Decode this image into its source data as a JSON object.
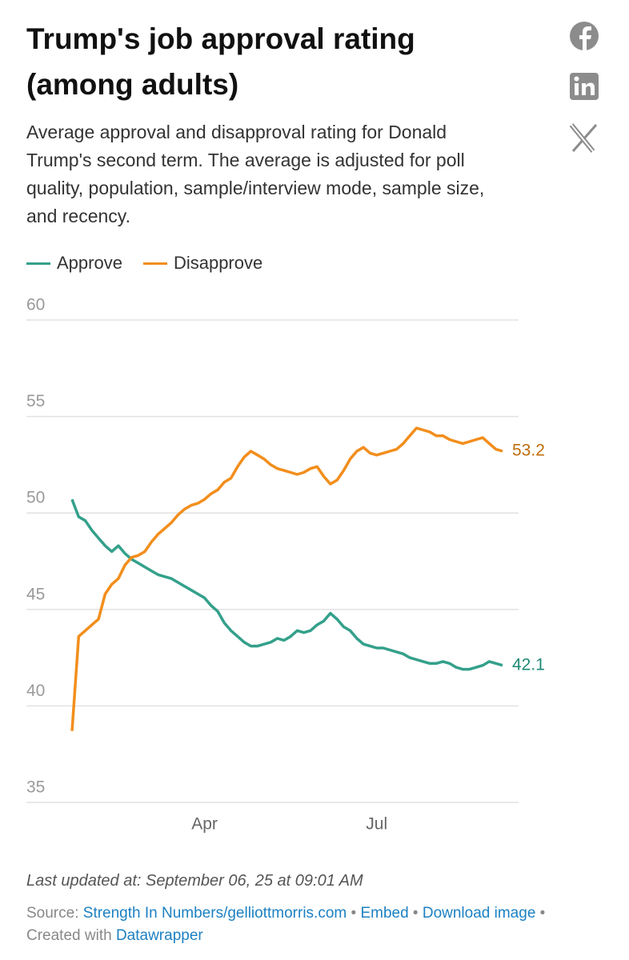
{
  "chart_data": {
    "type": "line",
    "title": "Trump's job approval rating (among adults)",
    "subtitle": "Average approval and disapproval rating for Donald Trump's second term. The average is adjusted for poll quality, population, sample/interview mode, sample size, and recency.",
    "categories": [
      null,
      null,
      null,
      null,
      null,
      null,
      null,
      null,
      null,
      null,
      null,
      null,
      null,
      null,
      null,
      null,
      null,
      null,
      null,
      null,
      "Apr",
      null,
      null,
      null,
      null,
      null,
      null,
      null,
      null,
      null,
      null,
      null,
      null,
      null,
      null,
      null,
      null,
      null,
      null,
      null,
      null,
      null,
      null,
      null,
      null,
      null,
      "Jul",
      null,
      null,
      null,
      null,
      null,
      null,
      null,
      null,
      null,
      null,
      null,
      null,
      null,
      null,
      null,
      null,
      null,
      null,
      null
    ],
    "series": [
      {
        "name": "Approve",
        "color": "#34a08b",
        "label_color": "#1f8a77",
        "values": [
          50.7,
          49.8,
          49.6,
          49.1,
          48.7,
          48.3,
          48.0,
          48.3,
          47.9,
          47.6,
          47.4,
          47.2,
          47.0,
          46.8,
          46.7,
          46.6,
          46.4,
          46.2,
          46.0,
          45.8,
          45.6,
          45.2,
          44.9,
          44.3,
          43.9,
          43.6,
          43.3,
          43.1,
          43.1,
          43.2,
          43.3,
          43.5,
          43.4,
          43.6,
          43.9,
          43.8,
          43.9,
          44.2,
          44.4,
          44.8,
          44.5,
          44.1,
          43.9,
          43.5,
          43.2,
          43.1,
          43.0,
          43.0,
          42.9,
          42.8,
          42.7,
          42.5,
          42.4,
          42.3,
          42.2,
          42.2,
          42.3,
          42.2,
          42.0,
          41.9,
          41.9,
          42.0,
          42.1,
          42.3,
          42.2,
          42.1
        ]
      },
      {
        "name": "Disapprove",
        "color": "#f28e1c",
        "label_color": "#bf6c0b",
        "values": [
          38.7,
          43.6,
          43.9,
          44.2,
          44.5,
          45.8,
          46.3,
          46.6,
          47.3,
          47.7,
          47.8,
          48.0,
          48.5,
          48.9,
          49.2,
          49.5,
          49.9,
          50.2,
          50.4,
          50.5,
          50.7,
          51.0,
          51.2,
          51.6,
          51.8,
          52.4,
          52.9,
          53.2,
          53.0,
          52.8,
          52.5,
          52.3,
          52.2,
          52.1,
          52.0,
          52.1,
          52.3,
          52.4,
          51.9,
          51.5,
          51.7,
          52.2,
          52.8,
          53.2,
          53.4,
          53.1,
          53.0,
          53.1,
          53.2,
          53.3,
          53.6,
          54.0,
          54.4,
          54.3,
          54.2,
          54.0,
          54.0,
          53.8,
          53.7,
          53.6,
          53.7,
          53.8,
          53.9,
          53.6,
          53.3,
          53.2
        ]
      }
    ],
    "ylim": [
      35,
      60
    ],
    "yticks": [
      35,
      40,
      45,
      50,
      55,
      60
    ],
    "grid": true
  },
  "footer": {
    "updated": "Last updated at: September 06, 25 at 09:01 AM",
    "source_label": "Source:",
    "source_link": "Strength In Numbers/gelliottmorris.com",
    "separator": "•",
    "embed": "Embed",
    "download": "Download image",
    "created_with": "Created with",
    "datawrapper": "Datawrapper"
  }
}
